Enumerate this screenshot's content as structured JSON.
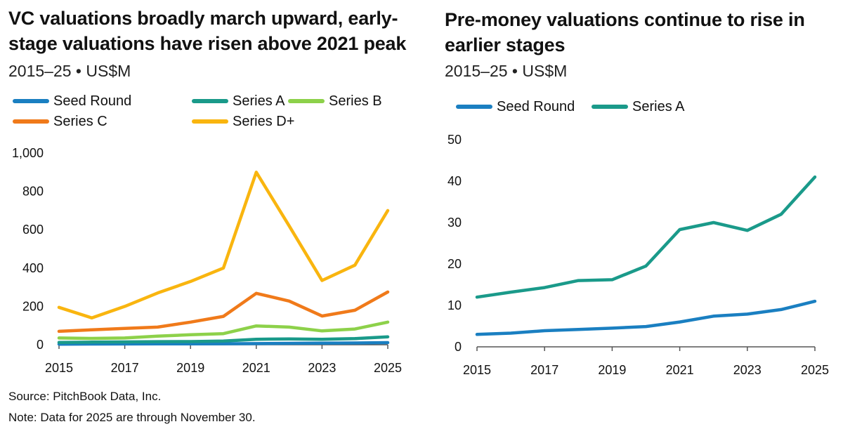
{
  "chart_data": [
    {
      "type": "line",
      "title": "VC valuations broadly march upward, early-stage valuations have risen above 2021 peak",
      "subtitle": "2015–25 • US$M",
      "x": [
        2015,
        2016,
        2017,
        2018,
        2019,
        2020,
        2021,
        2022,
        2023,
        2024,
        2025
      ],
      "xticks": [
        2015,
        2017,
        2019,
        2021,
        2023,
        2025
      ],
      "xlim": [
        2015,
        2025
      ],
      "ylim": [
        0,
        1000
      ],
      "yticks": [
        0,
        200,
        400,
        600,
        800,
        1000
      ],
      "ytick_labels": [
        "0",
        "200",
        "400",
        "600",
        "800",
        "1,000"
      ],
      "grid": false,
      "legend_position": "top",
      "series": [
        {
          "name": "Seed Round",
          "color": "#1a7fc1",
          "values": [
            3,
            3.5,
            4,
            4.3,
            4.6,
            5,
            6,
            7.5,
            8,
            9,
            11
          ]
        },
        {
          "name": "Series A",
          "color": "#1a9a8a",
          "values": [
            12,
            13.5,
            14.5,
            16,
            16.5,
            19.5,
            28.5,
            30,
            28.5,
            32,
            41
          ]
        },
        {
          "name": "Series B",
          "color": "#8dd14a",
          "values": [
            35,
            33,
            35,
            45,
            52,
            58,
            98,
            92,
            72,
            82,
            118
          ]
        },
        {
          "name": "Series C",
          "color": "#f07a1a",
          "values": [
            70,
            78,
            85,
            92,
            118,
            148,
            268,
            228,
            150,
            180,
            275
          ]
        },
        {
          "name": "Series D+",
          "color": "#f9b50f",
          "values": [
            195,
            140,
            200,
            270,
            330,
            400,
            900,
            620,
            335,
            415,
            700
          ]
        }
      ]
    },
    {
      "type": "line",
      "title": "Pre-money valuations continue to rise in earlier stages",
      "subtitle": "2015–25 • US$M",
      "x": [
        2015,
        2016,
        2017,
        2018,
        2019,
        2020,
        2021,
        2022,
        2023,
        2024,
        2025
      ],
      "xticks": [
        2015,
        2017,
        2019,
        2021,
        2023,
        2025
      ],
      "xlim": [
        2015,
        2025
      ],
      "ylim": [
        0,
        50
      ],
      "yticks": [
        0,
        10,
        20,
        30,
        40,
        50
      ],
      "ytick_labels": [
        "0",
        "10",
        "20",
        "30",
        "40",
        "50"
      ],
      "grid": false,
      "legend_position": "top",
      "series": [
        {
          "name": "Seed Round",
          "color": "#1a7fc1",
          "values": [
            3,
            3.3,
            3.9,
            4.2,
            4.5,
            4.9,
            6,
            7.4,
            7.9,
            9,
            11
          ]
        },
        {
          "name": "Series A",
          "color": "#1a9a8a",
          "values": [
            12,
            13.2,
            14.3,
            16,
            16.2,
            19.5,
            28.3,
            30,
            28.1,
            32,
            41
          ]
        }
      ]
    }
  ],
  "footer": {
    "source": "Source: PitchBook Data, Inc.",
    "note": "Note: Data for 2025 are through November 30."
  }
}
